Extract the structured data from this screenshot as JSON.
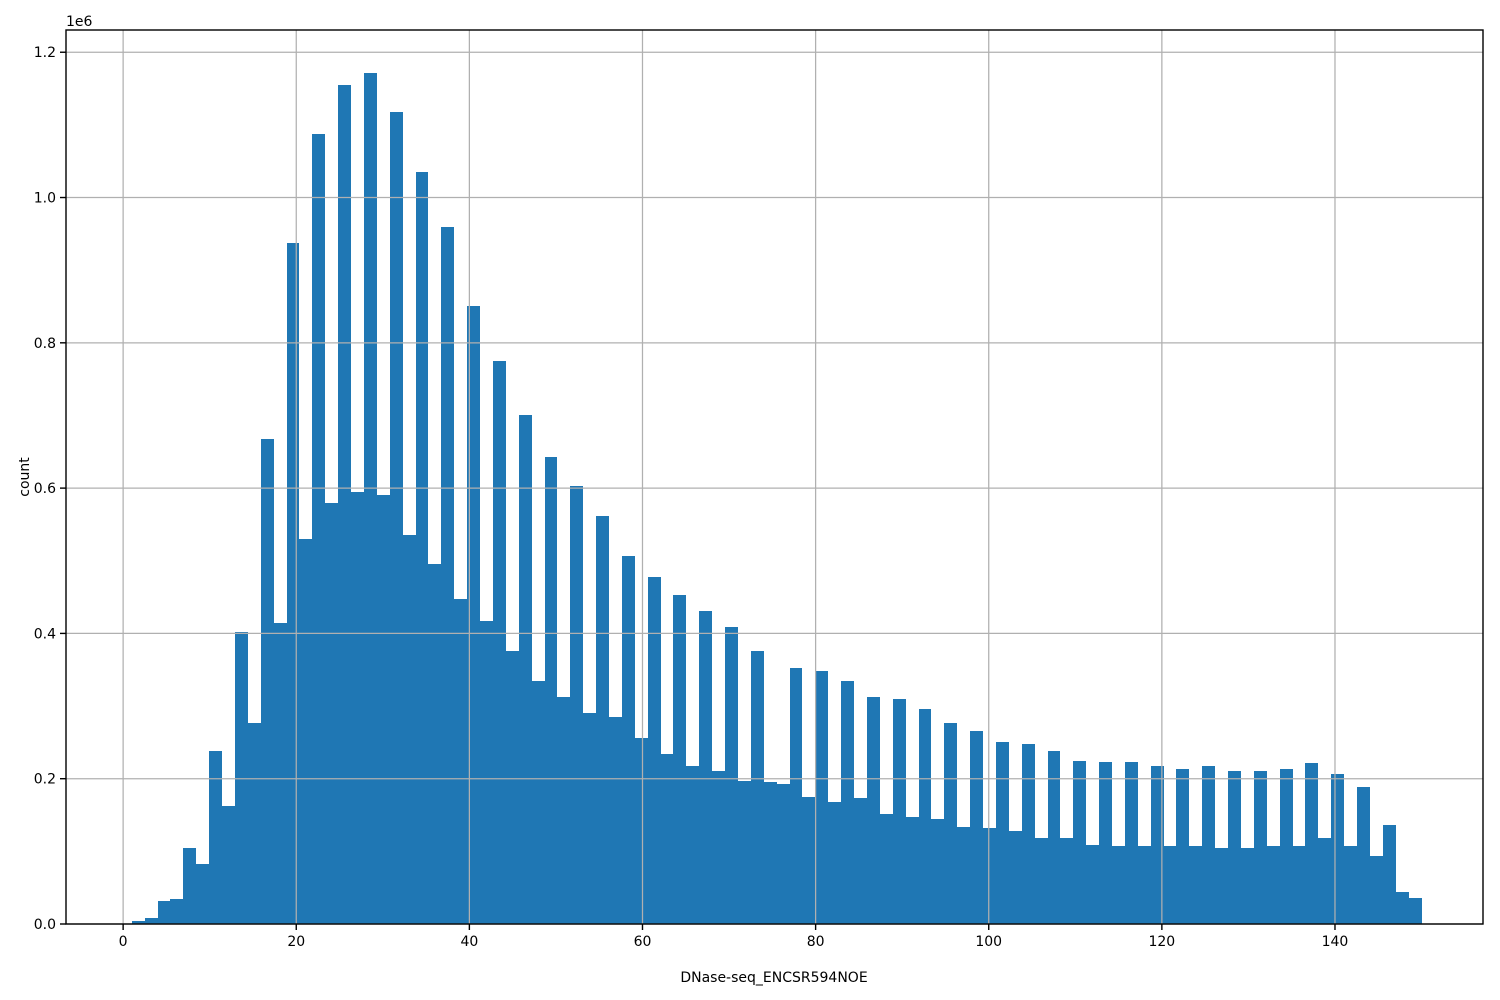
{
  "figure": {
    "background": "#ffffff"
  },
  "chart_data": {
    "type": "bar",
    "subtype": "histogram",
    "title": "",
    "xlabel": "DNase-seq_ENCSR594NOE",
    "ylabel": "count",
    "offset_text": "1e6",
    "grid": true,
    "legend_position": "none",
    "bar_color": "#1f77b4",
    "grid_color": "#b0b0b0",
    "axis_color": "#000000",
    "bin_start": 1.0,
    "bin_width": 1.49,
    "bin_count": 100,
    "xlim": [
      -6.6,
      157.1
    ],
    "ylim": [
      0,
      1230600
    ],
    "x_ticks": [
      0,
      20,
      40,
      60,
      80,
      100,
      120,
      140
    ],
    "x_tick_labels": [
      "0",
      "20",
      "40",
      "60",
      "80",
      "100",
      "120",
      "140"
    ],
    "y_ticks": [
      0,
      200000,
      400000,
      600000,
      800000,
      1000000,
      1200000
    ],
    "y_tick_labels": [
      "0.0",
      "0.2",
      "0.4",
      "0.6",
      "0.8",
      "1.0",
      "1.2"
    ],
    "counts": [
      4000,
      8000,
      32000,
      35000,
      105000,
      82000,
      238000,
      163000,
      402000,
      276000,
      667000,
      415000,
      937000,
      530000,
      1088000,
      580000,
      1155000,
      595000,
      1172000,
      591000,
      1118000,
      536000,
      1035000,
      496000,
      960000,
      447000,
      850000,
      417000,
      775000,
      376000,
      700000,
      334000,
      643000,
      312000,
      603000,
      290000,
      561000,
      285000,
      506000,
      256000,
      477000,
      234000,
      453000,
      218000,
      431000,
      210000,
      409000,
      197000,
      376000,
      196000,
      193000,
      352000,
      175000,
      348000,
      168000,
      334000,
      174000,
      312000,
      151000,
      310000,
      147000,
      296000,
      145000,
      277000,
      133000,
      265000,
      132000,
      250000,
      128000,
      248000,
      118000,
      238000,
      118000,
      225000,
      109000,
      223000,
      107000,
      223000,
      108000,
      217000,
      107000,
      214000,
      107000,
      217000,
      105000,
      210000,
      105000,
      210000,
      107000,
      214000,
      108000,
      222000,
      118000,
      207000,
      107000,
      188000,
      94000,
      136000,
      44000,
      36000
    ]
  }
}
